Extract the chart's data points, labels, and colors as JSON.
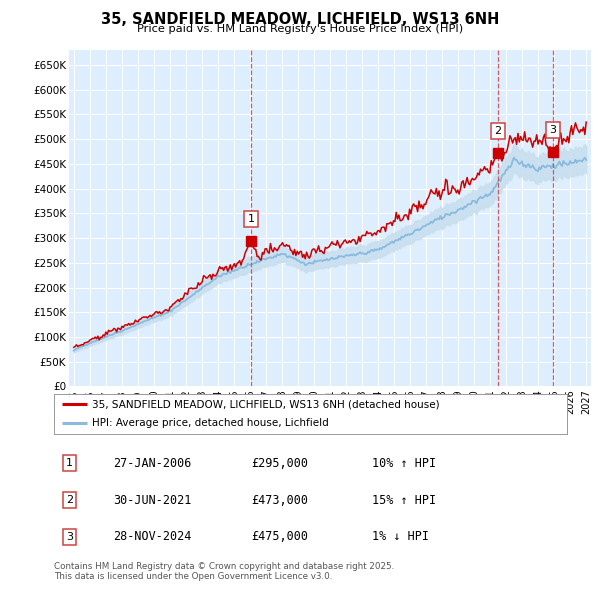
{
  "title": "35, SANDFIELD MEADOW, LICHFIELD, WS13 6NH",
  "subtitle": "Price paid vs. HM Land Registry's House Price Index (HPI)",
  "ylabel_ticks": [
    "£0",
    "£50K",
    "£100K",
    "£150K",
    "£200K",
    "£250K",
    "£300K",
    "£350K",
    "£400K",
    "£450K",
    "£500K",
    "£550K",
    "£600K",
    "£650K"
  ],
  "ytick_values": [
    0,
    50000,
    100000,
    150000,
    200000,
    250000,
    300000,
    350000,
    400000,
    450000,
    500000,
    550000,
    600000,
    650000
  ],
  "ylim": [
    0,
    680000
  ],
  "xlim_start": 1994.7,
  "xlim_end": 2027.3,
  "background_color": "#ffffff",
  "plot_bg_color": "#ddeeff",
  "grid_color": "#ffffff",
  "red_color": "#cc0000",
  "blue_color": "#88bbdd",
  "blue_fill_color": "#c8dff0",
  "dashed_red_color": "#cc4444",
  "legend_label_red": "35, SANDFIELD MEADOW, LICHFIELD, WS13 6NH (detached house)",
  "legend_label_blue": "HPI: Average price, detached house, Lichfield",
  "sale_points": [
    {
      "label": "1",
      "date_x": 2006.07,
      "price": 295000
    },
    {
      "label": "2",
      "date_x": 2021.5,
      "price": 473000
    },
    {
      "label": "3",
      "date_x": 2024.92,
      "price": 475000
    }
  ],
  "sale_table": [
    {
      "num": "1",
      "date": "27-JAN-2006",
      "price": "£295,000",
      "pct": "10% ↑ HPI"
    },
    {
      "num": "2",
      "date": "30-JUN-2021",
      "price": "£473,000",
      "pct": "15% ↑ HPI"
    },
    {
      "num": "3",
      "date": "28-NOV-2024",
      "price": "£475,000",
      "pct": "1% ↓ HPI"
    }
  ],
  "footnote": "Contains HM Land Registry data © Crown copyright and database right 2025.\nThis data is licensed under the Open Government Licence v3.0.",
  "xticks": [
    1995,
    1996,
    1997,
    1998,
    1999,
    2000,
    2001,
    2002,
    2003,
    2004,
    2005,
    2006,
    2007,
    2008,
    2009,
    2010,
    2011,
    2012,
    2013,
    2014,
    2015,
    2016,
    2017,
    2018,
    2019,
    2020,
    2021,
    2022,
    2023,
    2024,
    2025,
    2026,
    2027
  ]
}
